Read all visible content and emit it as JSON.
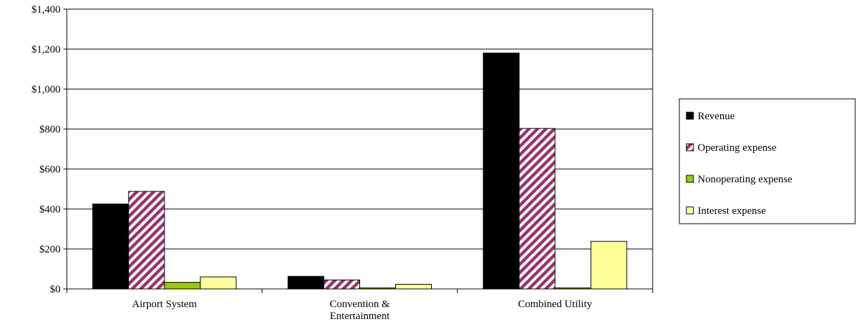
{
  "chart_data": {
    "type": "bar",
    "title": "",
    "xlabel": "",
    "ylabel": "",
    "categories": [
      "Airport System",
      "Convention & Entertainment",
      "Combined Utility"
    ],
    "category_lines": [
      [
        "Airport System"
      ],
      [
        "Convention &",
        "Entertainment"
      ],
      [
        "Combined Utility"
      ]
    ],
    "ylim": [
      0,
      1400
    ],
    "yticks": [
      0,
      200,
      400,
      600,
      800,
      1000,
      1200,
      1400
    ],
    "ytick_labels": [
      "$0",
      "$200",
      "$400",
      "$600",
      "$800",
      "$1,000",
      "$1,200",
      "$1,400"
    ],
    "grid": true,
    "legend_position": "right",
    "series": [
      {
        "name": "Revenue",
        "values": [
          425,
          63,
          1180
        ],
        "color": "#000000",
        "pattern": "solid"
      },
      {
        "name": "Operating expense",
        "values": [
          488,
          45,
          803
        ],
        "color": "#993366",
        "pattern": "diagonal-stripes"
      },
      {
        "name": "Nonoperating expense",
        "values": [
          33,
          5,
          5
        ],
        "color": "#99cc00",
        "pattern": "solid"
      },
      {
        "name": "Interest expense",
        "values": [
          60,
          23,
          238
        ],
        "color": "#ffff99",
        "pattern": "solid"
      }
    ]
  }
}
